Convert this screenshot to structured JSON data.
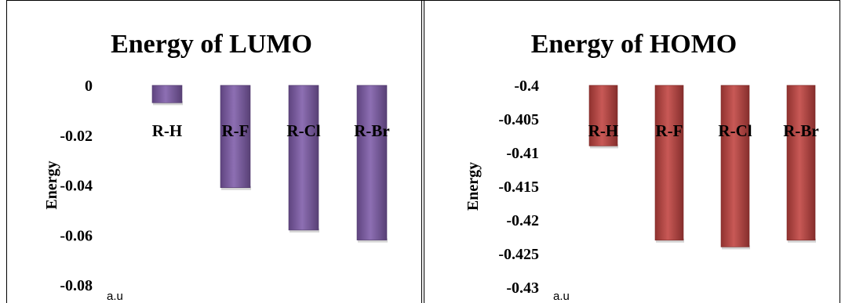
{
  "chart_data": [
    {
      "type": "bar",
      "title": "Energy of LUMO",
      "ylabel": "Energy",
      "unit_label": "a.u",
      "categories": [
        "R-H",
        "R-F",
        "R-Cl",
        "R-Br"
      ],
      "values": [
        -0.007,
        -0.041,
        -0.058,
        -0.062
      ],
      "ylim": [
        -0.08,
        0
      ],
      "yticks": [
        "0",
        "-0.02",
        "-0.04",
        "-0.06",
        "-0.08"
      ],
      "ytick_values": [
        0,
        -0.02,
        -0.04,
        -0.06,
        -0.08
      ],
      "bar_color": "#7E5BA9",
      "grid": false
    },
    {
      "type": "bar",
      "title": "Energy of HOMO",
      "ylabel": "Energy",
      "unit_label": "a.u",
      "categories": [
        "R-H",
        "R-F",
        "R-Cl",
        "R-Br"
      ],
      "values": [
        -0.409,
        -0.423,
        -0.424,
        -0.423
      ],
      "ylim": [
        -0.43,
        -0.4
      ],
      "yticks": [
        "-0.4",
        "-0.405",
        "-0.41",
        "-0.415",
        "-0.42",
        "-0.425",
        "-0.43"
      ],
      "ytick_values": [
        -0.4,
        -0.405,
        -0.41,
        -0.415,
        -0.42,
        -0.425,
        -0.43
      ],
      "bar_color": "#C0423F",
      "grid": false
    }
  ]
}
